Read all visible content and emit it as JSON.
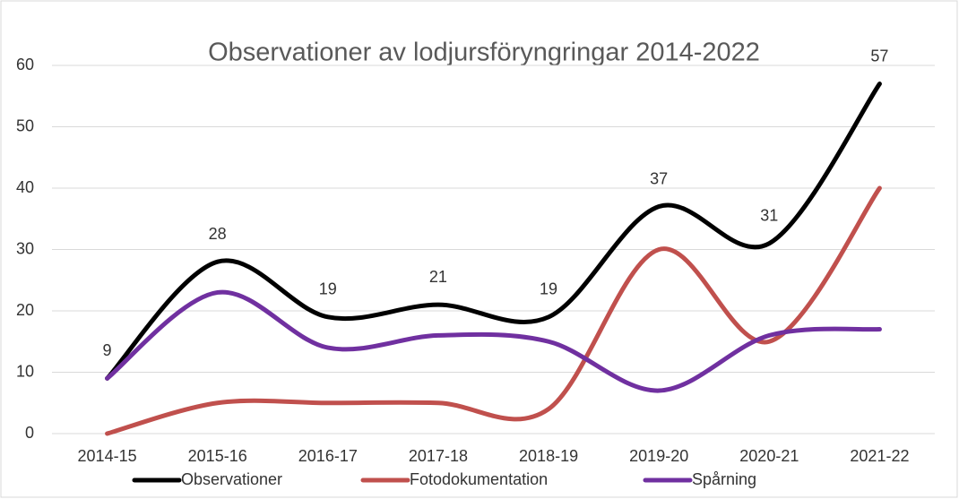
{
  "chart_data": {
    "type": "line",
    "title": "Observationer av lodjursföryngringar 2014-2022",
    "categories": [
      "2014-15",
      "2015-16",
      "2016-17",
      "2017-18",
      "2018-19",
      "2019-20",
      "2020-21",
      "2021-22"
    ],
    "series": [
      {
        "name": "Observationer",
        "color": "#000000",
        "values": [
          9,
          28,
          19,
          21,
          19,
          37,
          31,
          57
        ]
      },
      {
        "name": "Fotodokumentation",
        "color": "#c0504d",
        "values": [
          0,
          5,
          5,
          5,
          4,
          30,
          15,
          40
        ]
      },
      {
        "name": "Spårning",
        "color": "#7030a0",
        "values": [
          9,
          23,
          14,
          16,
          15,
          7,
          16,
          17
        ]
      }
    ],
    "ylim": [
      0,
      60
    ],
    "yticks": [
      0,
      10,
      20,
      30,
      40,
      50,
      60
    ],
    "grid": true,
    "smooth": true,
    "data_labels_series": 0,
    "legend": "bottom"
  }
}
